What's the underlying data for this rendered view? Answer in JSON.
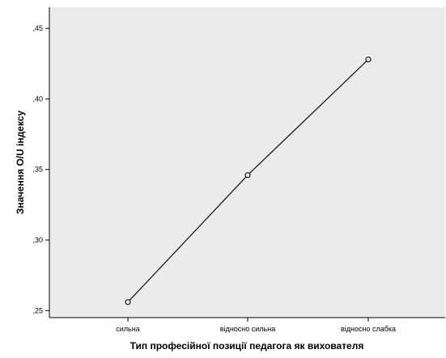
{
  "colors": {
    "plot_background": "#ebebeb",
    "line": "#1a1a1a",
    "axis": "#000000",
    "page_background": "#ffffff"
  },
  "chart_data": {
    "type": "line",
    "title": "",
    "xlabel": "Тип професійної позиції педагога як вихователя",
    "ylabel": "Значення O/U індексу",
    "categories": [
      "сильна",
      "відносно сильна",
      "відносно слабка"
    ],
    "series": [
      {
        "values": [
          0.256,
          0.346,
          0.428
        ],
        "marker": "open-circle"
      }
    ],
    "ylim": [
      0.245,
      0.465
    ],
    "yticks": [
      0.25,
      0.3,
      0.35,
      0.4,
      0.45
    ],
    "ytick_labels": [
      ",25",
      ",30",
      ",35",
      ",40",
      ",45"
    ],
    "grid": false,
    "legend": "none"
  }
}
